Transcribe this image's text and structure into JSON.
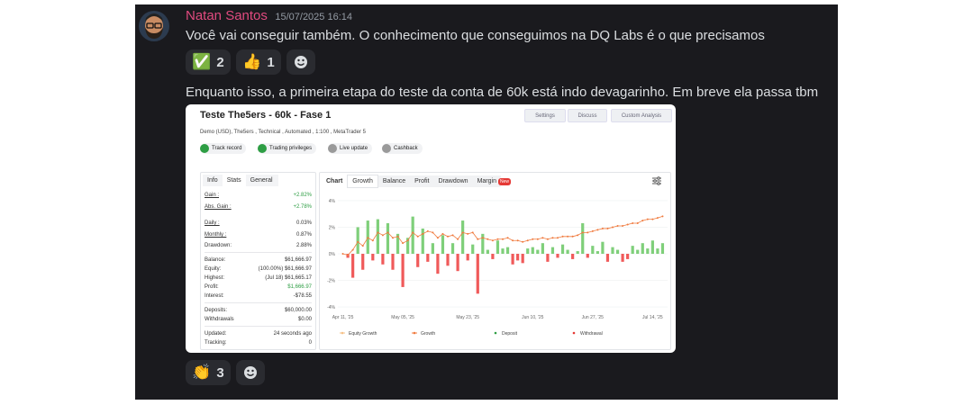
{
  "message": {
    "author": "Natan Santos",
    "timestamp": "15/07/2025 16:14",
    "text": "Você vai conseguir também. O conhecimento que conseguimos na DQ Labs é o que precisamos",
    "reactions": [
      {
        "emoji": "✅",
        "count": 2
      },
      {
        "emoji": "👍",
        "count": 1
      }
    ]
  },
  "message2": {
    "text": "Enquanto isso, a primeira etapa do teste da conta de 60k está indo devagarinho. Em breve ela passa tbm",
    "reactions": [
      {
        "emoji": "👏",
        "count": 3
      }
    ]
  },
  "embed": {
    "title": "Teste The5ers - 60k - Fase 1",
    "buttons": [
      "Settings",
      "Discuss",
      "Custom Analysis"
    ],
    "subtitle": "Demo (USD), The5ers , Technical , Automated , 1:100 , MetaTrader 5",
    "badges": [
      "Track record",
      "Trading privileges",
      "Live update",
      "Cashback"
    ],
    "left_tabs": [
      "Info",
      "Stats",
      "General"
    ],
    "stats": [
      [
        "Gain :",
        "+2.82%"
      ],
      [
        "Abs. Gain :",
        "+2.78%"
      ],
      [
        "Daily :",
        "0.03%"
      ],
      [
        "Monthly :",
        "0.87%"
      ],
      [
        "Drawdown:",
        "2.88%"
      ],
      [
        "Balance:",
        "$61,666.97"
      ],
      [
        "Equity:",
        "(100.00%) $61,666.97"
      ],
      [
        "Highest:",
        "(Jul 18) $61,665.17"
      ],
      [
        "Profit:",
        "$1,666.97"
      ],
      [
        "Interest:",
        "-$78.55"
      ],
      [
        "Deposits:",
        "$60,000.00"
      ],
      [
        "Withdrawals",
        "$0.00"
      ],
      [
        "Updated:",
        "24 seconds ago"
      ],
      [
        "Tracking:",
        "0"
      ]
    ],
    "chart_tabs": [
      "Chart",
      "Growth",
      "Balance",
      "Profit",
      "Drawdown",
      "Margin"
    ],
    "new_badge": "New"
  },
  "chart_data": {
    "type": "combo",
    "bars": {
      "positive_color": "#7fcf7a",
      "negative_color": "#f05a5a",
      "values": [
        0,
        -0.3,
        -1.8,
        2.0,
        -1.2,
        2.5,
        -0.5,
        2.6,
        -0.8,
        2.3,
        -1.2,
        1.5,
        -2.5,
        1.2,
        2.8,
        -1.0,
        1.9,
        -0.6,
        0.8,
        -1.5,
        1.4,
        -0.9,
        0.8,
        -1.3,
        2.5,
        -0.5,
        0.7,
        -3.0,
        1.5,
        0.3,
        -0.4,
        1.0,
        0.4,
        0.5,
        -0.8,
        -0.5,
        -0.7,
        0.4,
        0.5,
        0.3,
        0.8,
        -0.6,
        0.5,
        -0.3,
        0.7,
        0.3,
        -0.4,
        0.2,
        2.3,
        -0.3,
        0.6,
        0.2,
        0.9,
        -0.6,
        0.5,
        0.3,
        -0.6,
        -0.4,
        0.6,
        0.3,
        0.8,
        0.4,
        1.0,
        0.4,
        0.8
      ]
    },
    "line": {
      "color": "#f07b3f",
      "values": [
        0,
        -0.1,
        0.3,
        0.9,
        0.6,
        1.2,
        1.0,
        1.6,
        1.4,
        1.6,
        1.2,
        1.3,
        0.8,
        1.0,
        1.6,
        1.3,
        1.5,
        1.7,
        1.6,
        1.2,
        1.5,
        1.3,
        1.4,
        1.1,
        1.6,
        1.5,
        1.6,
        1.1,
        1.2,
        1.1,
        1.0,
        1.1,
        1.1,
        1.2,
        1.0,
        1.0,
        0.9,
        1.0,
        1.1,
        1.1,
        1.2,
        1.1,
        1.2,
        1.2,
        1.3,
        1.3,
        1.3,
        1.4,
        1.6,
        1.6,
        1.7,
        1.8,
        1.9,
        1.9,
        2.0,
        2.1,
        2.1,
        2.2,
        2.3,
        2.3,
        2.5,
        2.6,
        2.6,
        2.7,
        2.82
      ]
    },
    "xlim": [
      -1,
      65
    ],
    "ylim": [
      -4.4,
      4.4
    ],
    "yticks": [
      {
        "value": 4,
        "label": "4%"
      },
      {
        "value": 2,
        "label": "2%"
      },
      {
        "value": 0,
        "label": "0%"
      },
      {
        "value": -2,
        "label": "-2%"
      },
      {
        "value": -4,
        "label": "-4%"
      }
    ],
    "xticks": [
      {
        "value": 0,
        "label": "Apr 11, '25"
      },
      {
        "value": 12,
        "label": "May 05, '25"
      },
      {
        "value": 25,
        "label": "May 23, '25"
      },
      {
        "value": 38,
        "label": "Jun 10, '25"
      },
      {
        "value": 50,
        "label": "Jun 27, '25"
      },
      {
        "value": 62,
        "label": "Jul 14, '25"
      }
    ],
    "grid": true,
    "legend": [
      {
        "label": "Equity Growth",
        "color": "#f6c087"
      },
      {
        "label": "Growth",
        "color": "#f07b3f"
      },
      {
        "label": "Deposit",
        "color": "#2e9e44"
      },
      {
        "label": "Withdrawal",
        "color": "#e53935"
      }
    ]
  }
}
